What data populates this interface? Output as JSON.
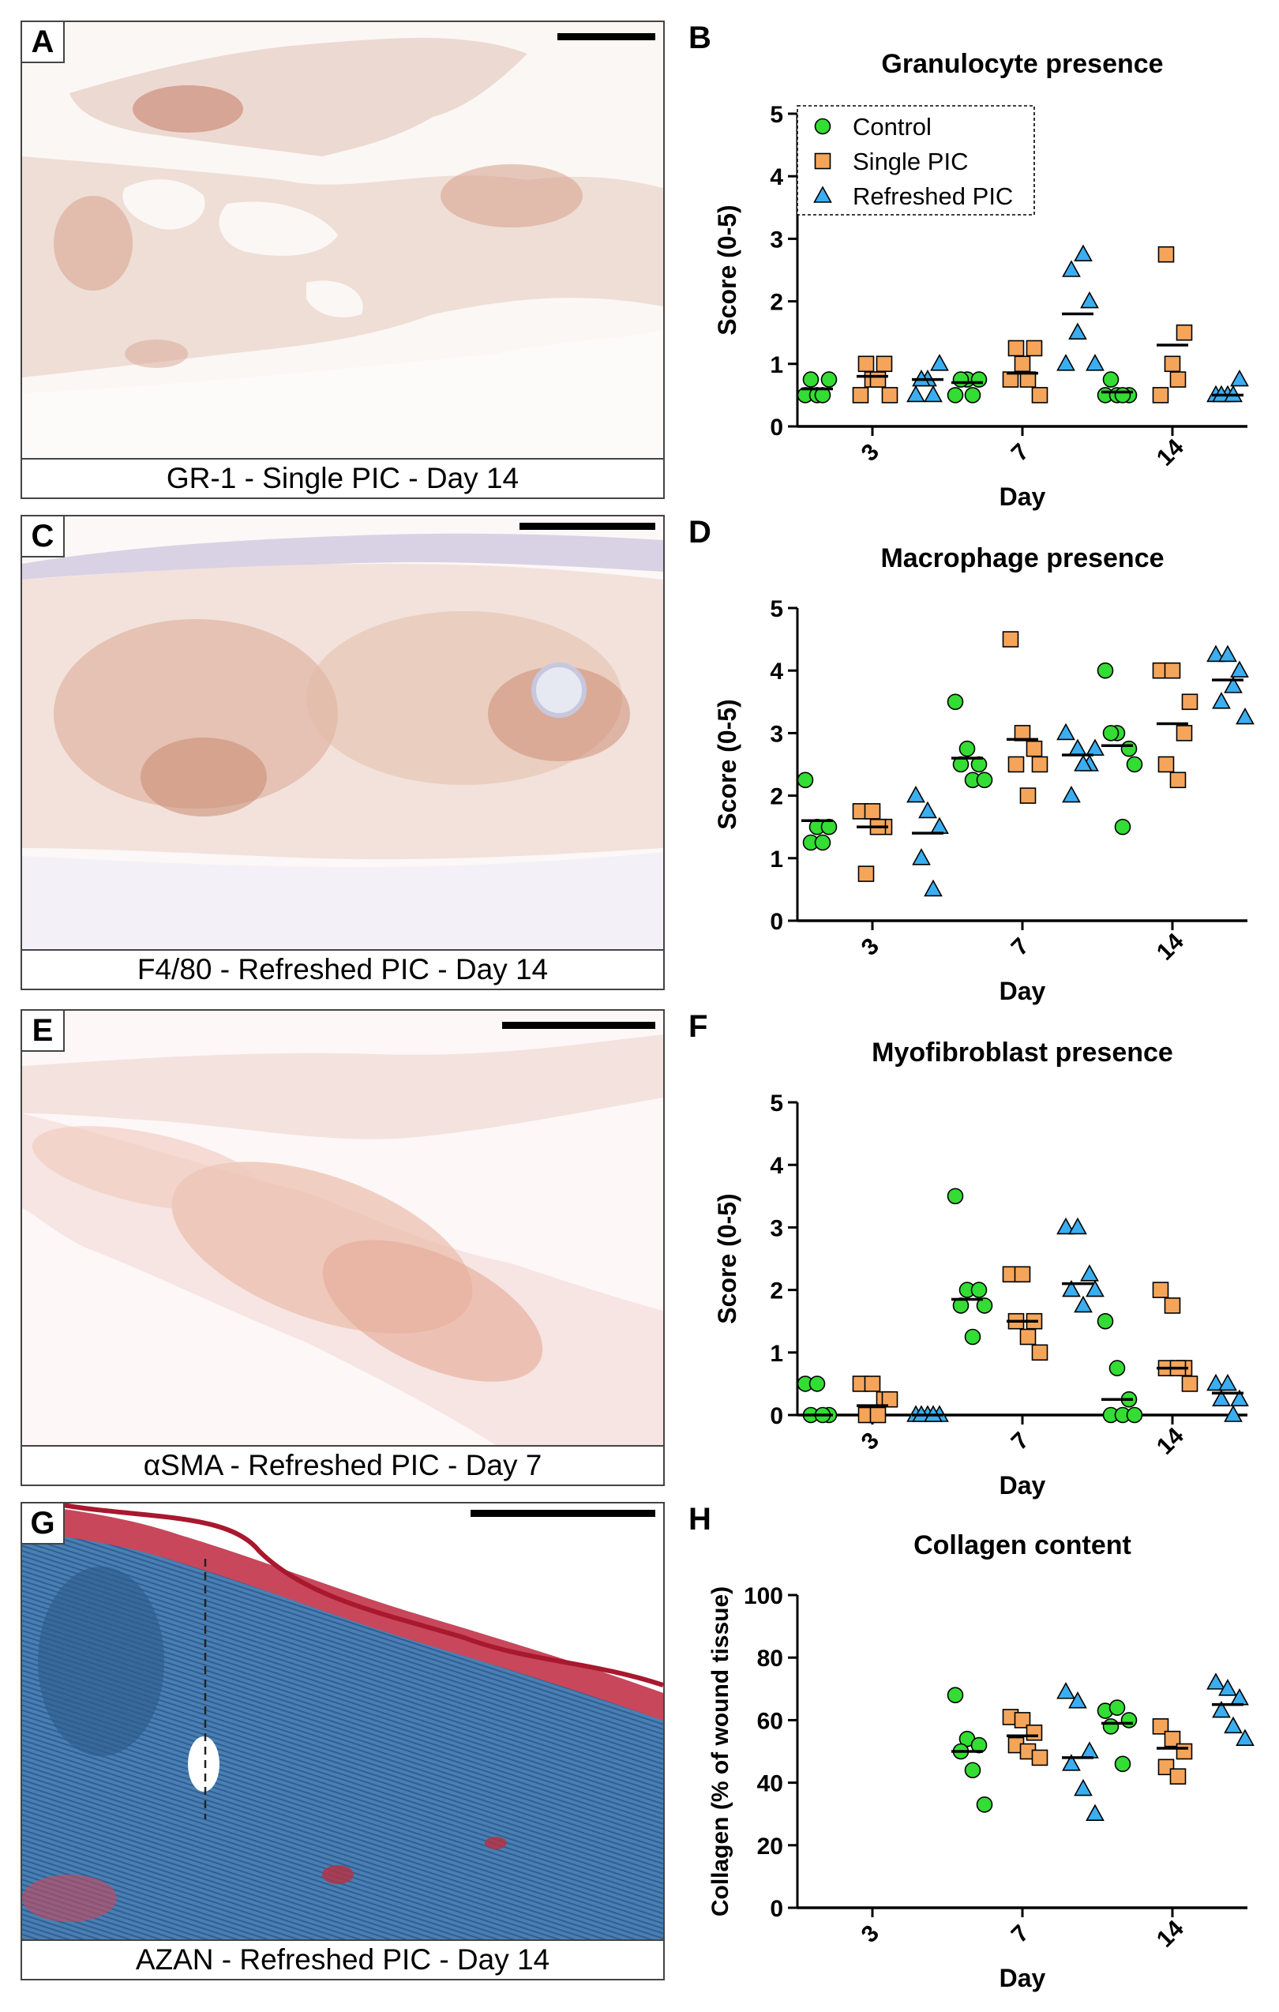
{
  "panels": {
    "A": {
      "letter": "A",
      "caption": "GR-1 - Single PIC - Day 14"
    },
    "B": {
      "letter": "B"
    },
    "C": {
      "letter": "C",
      "caption": "F4/80 - Refreshed PIC - Day 14"
    },
    "D": {
      "letter": "D"
    },
    "E": {
      "letter": "E",
      "caption": "αSMA - Refreshed PIC - Day 7"
    },
    "F": {
      "letter": "F"
    },
    "G": {
      "letter": "G",
      "caption": "AZAN - Refreshed PIC - Day 14"
    },
    "H": {
      "letter": "H"
    }
  },
  "colors": {
    "control": "#33dd33",
    "single": "#f5a55a",
    "refreshed": "#3aaef0"
  },
  "chart_data": [
    {
      "id": "B",
      "type": "scatter",
      "title": "Granulocyte presence",
      "xlabel": "Day",
      "ylabel": "Score (0-5)",
      "categories": [
        "3",
        "7",
        "14"
      ],
      "ylim": [
        0,
        5
      ],
      "yticks": [
        0,
        1,
        2,
        3,
        4,
        5
      ],
      "legend": [
        "Control",
        "Single PIC",
        "Refreshed PIC"
      ],
      "legend_position": "top-left",
      "series": [
        {
          "name": "Control",
          "values": [
            [
              0.5,
              0.5,
              0.75,
              0.75,
              0.5
            ],
            [
              0.5,
              0.75,
              0.75,
              0.75,
              0.5
            ],
            [
              0.5,
              0.5,
              0.5,
              0.75,
              0.5
            ]
          ],
          "means": [
            0.6,
            0.7,
            0.55
          ]
        },
        {
          "name": "Single PIC",
          "values": [
            [
              0.5,
              0.75,
              1.0,
              1.0,
              0.75,
              0.5
            ],
            [
              0.75,
              1.0,
              1.25,
              1.25,
              0.75,
              0.5
            ],
            [
              0.5,
              1.0,
              1.5,
              2.75,
              0.75
            ]
          ],
          "means": [
            0.8,
            0.85,
            1.3
          ]
        },
        {
          "name": "Refreshed PIC",
          "values": [
            [
              0.5,
              0.75,
              1.0,
              0.75,
              0.5
            ],
            [
              1.0,
              1.5,
              2.0,
              2.5,
              2.75,
              1.0
            ],
            [
              0.5,
              0.5,
              0.75,
              0.5,
              0.5
            ]
          ],
          "means": [
            0.75,
            1.8,
            0.5
          ]
        }
      ]
    },
    {
      "id": "D",
      "type": "scatter",
      "title": "Macrophage presence",
      "xlabel": "Day",
      "ylabel": "Score (0-5)",
      "categories": [
        "3",
        "7",
        "14"
      ],
      "ylim": [
        0,
        5
      ],
      "yticks": [
        0,
        1,
        2,
        3,
        4,
        5
      ],
      "series": [
        {
          "name": "Control",
          "values": [
            [
              2.25,
              1.5,
              1.5,
              1.25,
              1.25
            ],
            [
              3.5,
              2.75,
              2.5,
              2.5,
              2.25,
              2.25
            ],
            [
              4.0,
              3.0,
              2.75,
              3.0,
              1.5,
              2.5
            ]
          ],
          "means": [
            1.6,
            2.6,
            2.8
          ]
        },
        {
          "name": "Single PIC",
          "values": [
            [
              1.75,
              1.75,
              1.5,
              0.75,
              1.5
            ],
            [
              4.5,
              3.0,
              2.75,
              2.5,
              2.0,
              2.5
            ],
            [
              4.0,
              4.0,
              3.0,
              2.5,
              2.25,
              3.5
            ]
          ],
          "means": [
            1.5,
            2.9,
            3.15
          ]
        },
        {
          "name": "Refreshed PIC",
          "values": [
            [
              2.0,
              1.75,
              1.5,
              1.0,
              0.5
            ],
            [
              3.0,
              2.75,
              2.5,
              2.0,
              2.5,
              2.75
            ],
            [
              4.25,
              4.25,
              4.0,
              3.5,
              3.75,
              3.25
            ]
          ],
          "means": [
            1.4,
            2.65,
            3.85
          ]
        }
      ]
    },
    {
      "id": "F",
      "type": "scatter",
      "title": "Myofibroblast presence",
      "xlabel": "Day",
      "ylabel": "Score (0-5)",
      "categories": [
        "3",
        "7",
        "14"
      ],
      "ylim": [
        0,
        5
      ],
      "yticks": [
        0,
        1,
        2,
        3,
        4,
        5
      ],
      "series": [
        {
          "name": "Control",
          "values": [
            [
              0.5,
              0.5,
              0.0,
              0.0,
              0.0
            ],
            [
              3.5,
              2.0,
              2.0,
              1.75,
              1.25,
              1.75
            ],
            [
              1.5,
              0.75,
              0.25,
              0.0,
              0.0,
              0.0
            ]
          ],
          "means": [
            0.0,
            1.85,
            0.25
          ]
        },
        {
          "name": "Single PIC",
          "values": [
            [
              0.5,
              0.5,
              0.25,
              0.0,
              0.0,
              0.25
            ],
            [
              2.25,
              2.25,
              1.5,
              1.5,
              1.25,
              1.0
            ],
            [
              2.0,
              1.75,
              0.75,
              0.75,
              0.75,
              0.5
            ]
          ],
          "means": [
            0.15,
            1.5,
            0.75
          ]
        },
        {
          "name": "Refreshed PIC",
          "values": [
            [
              0.0,
              0.0,
              0.0,
              0.0,
              0.0
            ],
            [
              3.0,
              3.0,
              2.25,
              2.0,
              1.75,
              2.0
            ],
            [
              0.5,
              0.5,
              0.25,
              0.25,
              0.0
            ]
          ],
          "means": [
            0.0,
            2.1,
            0.35
          ]
        }
      ]
    },
    {
      "id": "H",
      "type": "scatter",
      "title": "Collagen content",
      "xlabel": "Day",
      "ylabel": "Collagen (% of wound tissue)",
      "categories": [
        "3",
        "7",
        "14"
      ],
      "ylim": [
        0,
        100
      ],
      "yticks": [
        0,
        20,
        40,
        60,
        80,
        100
      ],
      "series": [
        {
          "name": "Control",
          "values": [
            [],
            [
              68,
              54,
              52,
              50,
              44,
              33
            ],
            [
              63,
              64,
              60,
              58,
              46
            ]
          ],
          "means": [
            null,
            50,
            59
          ]
        },
        {
          "name": "Single PIC",
          "values": [
            [],
            [
              61,
              60,
              56,
              52,
              50,
              48
            ],
            [
              58,
              54,
              50,
              45,
              42
            ]
          ],
          "means": [
            null,
            55,
            51
          ]
        },
        {
          "name": "Refreshed PIC",
          "values": [
            [],
            [
              69,
              66,
              50,
              46,
              38,
              30
            ],
            [
              72,
              70,
              67,
              63,
              58,
              54
            ]
          ],
          "means": [
            null,
            48,
            65
          ]
        }
      ]
    }
  ]
}
